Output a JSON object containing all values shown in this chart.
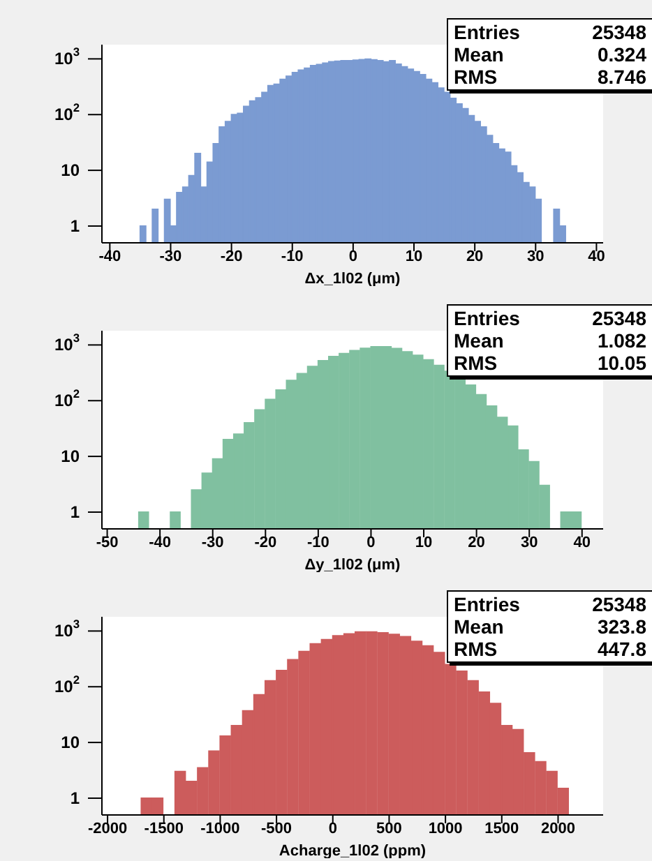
{
  "chart_data": [
    {
      "type": "histogram",
      "xlabel": "Δx_1l02 (μm)",
      "log": "y",
      "grid": false,
      "xlim": [
        -41.3,
        41.1
      ],
      "xticks": [
        -40,
        -30,
        -20,
        -10,
        0,
        10,
        20,
        30,
        40
      ],
      "ylim": [
        0.5,
        1800
      ],
      "yticks": [
        {
          "value": 1,
          "label": "1"
        },
        {
          "value": 10,
          "label": "10"
        },
        {
          "value": 100,
          "label": "10$^{2}$"
        },
        {
          "value": 1000,
          "label": "10$^{3}$"
        }
      ],
      "color": "#7b9bd2",
      "bins": [
        -35,
        -34,
        -33,
        -32,
        -31,
        -30,
        -29,
        -28,
        -27,
        -26,
        -25,
        -24,
        -23,
        -22,
        -21,
        -20,
        -19,
        -18,
        -17,
        -16,
        -15,
        -14,
        -13,
        -12,
        -11,
        -10,
        -9,
        -8,
        -7,
        -6,
        -5,
        -4,
        -3,
        -2,
        -1,
        0,
        1,
        2,
        3,
        4,
        5,
        6,
        7,
        8,
        9,
        10,
        11,
        12,
        13,
        14,
        15,
        16,
        17,
        18,
        19,
        20,
        21,
        22,
        23,
        24,
        25,
        26,
        27,
        28,
        29,
        30,
        31,
        32,
        33,
        34,
        35
      ],
      "values": [
        1,
        null,
        2,
        null,
        3,
        1,
        4,
        5,
        8,
        20,
        5,
        14,
        30,
        60,
        75,
        100,
        105,
        140,
        175,
        200,
        250,
        330,
        350,
        430,
        490,
        570,
        630,
        680,
        760,
        790,
        840,
        890,
        910,
        930,
        930,
        950,
        970,
        990,
        960,
        930,
        880,
        930,
        800,
        720,
        650,
        590,
        520,
        430,
        370,
        300,
        250,
        195,
        155,
        128,
        96,
        75,
        60,
        42,
        30,
        24,
        21,
        12,
        9,
        6,
        5,
        3,
        null,
        null,
        2,
        1
      ],
      "annotations": [
        "Entries",
        "25348",
        "Mean",
        "0.324",
        "RMS",
        "8.746"
      ]
    },
    {
      "type": "histogram",
      "xlabel": "Δy_1l02 (μm)",
      "log": "y",
      "grid": false,
      "xlim": [
        -51,
        44
      ],
      "xticks": [
        -50,
        -40,
        -30,
        -20,
        -10,
        0,
        10,
        20,
        30,
        40
      ],
      "ylim": [
        0.5,
        1800
      ],
      "yticks": [
        {
          "value": 1,
          "label": "1"
        },
        {
          "value": 10,
          "label": "10"
        },
        {
          "value": 100,
          "label": "10$^{2}$"
        },
        {
          "value": 1000,
          "label": "10$^{3}$"
        }
      ],
      "color": "#80c0a0",
      "bins": [
        -44,
        -42,
        -40,
        -38,
        -36,
        -34,
        -32,
        -30,
        -28,
        -26,
        -24,
        -22,
        -20,
        -18,
        -16,
        -14,
        -12,
        -10,
        -8,
        -6,
        -4,
        -2,
        0,
        2,
        4,
        6,
        8,
        10,
        12,
        14,
        16,
        18,
        20,
        22,
        24,
        26,
        28,
        30,
        32,
        34,
        36,
        38,
        40
      ],
      "values": [
        1,
        null,
        null,
        1,
        null,
        2.5,
        5,
        9,
        20,
        25,
        40,
        68,
        105,
        155,
        230,
        305,
        410,
        520,
        620,
        700,
        790,
        870,
        930,
        930,
        860,
        750,
        650,
        540,
        430,
        335,
        250,
        190,
        128,
        80,
        50,
        35,
        13,
        8,
        3,
        null,
        1,
        1
      ],
      "annotations": [
        "Entries",
        "25348",
        "Mean",
        "1.082",
        "RMS",
        "10.05"
      ]
    },
    {
      "type": "histogram",
      "xlabel": "Acharge_1l02 (ppm)",
      "log": "y",
      "grid": false,
      "xlim": [
        -2050,
        2400
      ],
      "xticks": [
        -2000,
        -1500,
        -1000,
        -500,
        0,
        500,
        1000,
        1500,
        2000
      ],
      "ylim": [
        0.5,
        1800
      ],
      "yticks": [
        {
          "value": 1,
          "label": "1"
        },
        {
          "value": 10,
          "label": "10"
        },
        {
          "value": 100,
          "label": "10$^{2}$"
        },
        {
          "value": 1000,
          "label": "10$^{3}$"
        }
      ],
      "color": "#cc5c5c",
      "bins": [
        -1700,
        -1600,
        -1500,
        -1400,
        -1300,
        -1200,
        -1100,
        -1000,
        -900,
        -800,
        -700,
        -600,
        -500,
        -400,
        -300,
        -200,
        -100,
        0,
        100,
        200,
        300,
        400,
        500,
        600,
        700,
        800,
        900,
        1000,
        1100,
        1200,
        1300,
        1400,
        1500,
        1600,
        1700,
        1800,
        1900,
        2000,
        2100
      ],
      "values": [
        1,
        1,
        null,
        3,
        2,
        3.5,
        7,
        13,
        20,
        37,
        72,
        128,
        195,
        305,
        430,
        590,
        700,
        820,
        890,
        960,
        960,
        930,
        870,
        790,
        650,
        540,
        410,
        250,
        190,
        128,
        80,
        50,
        20,
        17,
        6.5,
        4.5,
        3,
        1.5
      ],
      "annotations": [
        "Entries",
        "25348",
        "Mean",
        "323.8",
        "RMS",
        "447.8"
      ]
    }
  ]
}
